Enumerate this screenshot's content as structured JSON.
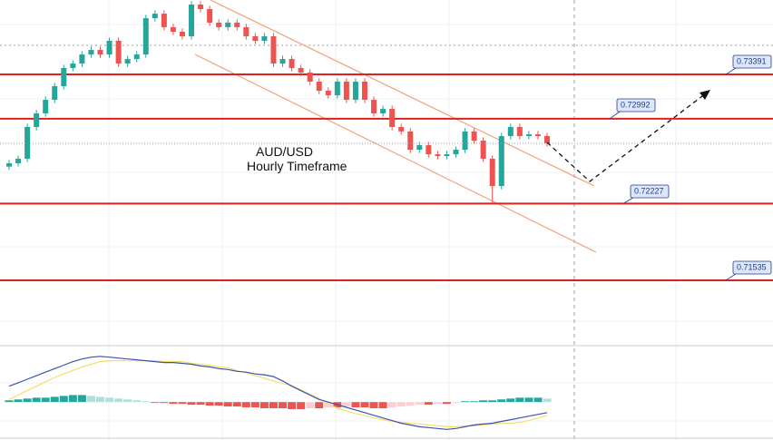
{
  "chart_data": {
    "type": "candlestick",
    "title": "AUD/USD",
    "subtitle": "Hourly Timeframe",
    "ylim": [
      0.70954,
      0.74062
    ],
    "up_color": "#26a69a",
    "down_color": "#ef5350",
    "open": [
      0.7256,
      0.7259,
      0.72631,
      0.72917,
      0.7304,
      0.73162,
      0.73285,
      0.73449,
      0.73489,
      0.73571,
      0.73612,
      0.73571,
      0.73694,
      0.73489,
      0.7353,
      0.73571,
      0.73898,
      0.73939,
      0.73817,
      0.73776,
      0.73735,
      0.74021,
      0.7398,
      0.73858,
      0.73817,
      0.73858,
      0.73817,
      0.73735,
      0.73694,
      0.73735,
      0.73489,
      0.7353,
      0.73449,
      0.73408,
      0.73326,
      0.73244,
      0.73203,
      0.73326,
      0.73162,
      0.73326,
      0.73162,
      0.7304,
      0.7308,
      0.72917,
      0.72877,
      0.72712,
      0.72753,
      0.72671,
      0.72655,
      0.72671,
      0.72712,
      0.72877,
      0.72794,
      0.72631,
      0.72385,
      0.72835,
      0.72917,
      0.72835,
      0.72851,
      0.72835
    ],
    "high": [
      0.7262,
      0.72661,
      0.72947,
      0.7307,
      0.73192,
      0.73315,
      0.73479,
      0.73519,
      0.73601,
      0.73642,
      0.73642,
      0.73724,
      0.73724,
      0.7356,
      0.73601,
      0.73928,
      0.73969,
      0.73969,
      0.73847,
      0.73806,
      0.74051,
      0.74051,
      0.7401,
      0.73888,
      0.73888,
      0.73888,
      0.73847,
      0.73765,
      0.73765,
      0.73765,
      0.7356,
      0.7356,
      0.73479,
      0.73438,
      0.73356,
      0.73274,
      0.73356,
      0.73356,
      0.73356,
      0.73356,
      0.73192,
      0.7311,
      0.7311,
      0.72947,
      0.72907,
      0.72783,
      0.72783,
      0.72701,
      0.72701,
      0.72742,
      0.72907,
      0.72907,
      0.72824,
      0.72661,
      0.72865,
      0.72947,
      0.72947,
      0.72881,
      0.72881,
      0.72865
    ],
    "low": [
      0.7253,
      0.7256,
      0.72601,
      0.72887,
      0.7301,
      0.73132,
      0.73255,
      0.73419,
      0.73459,
      0.73541,
      0.73541,
      0.73541,
      0.73459,
      0.73459,
      0.735,
      0.73541,
      0.73868,
      0.73787,
      0.73746,
      0.73705,
      0.73705,
      0.7395,
      0.73828,
      0.73787,
      0.73787,
      0.73787,
      0.73705,
      0.73664,
      0.73664,
      0.73459,
      0.73459,
      0.73419,
      0.73378,
      0.73296,
      0.73214,
      0.73173,
      0.73173,
      0.73132,
      0.73132,
      0.73132,
      0.7301,
      0.7301,
      0.72887,
      0.72847,
      0.72682,
      0.72682,
      0.72641,
      0.72625,
      0.72625,
      0.72641,
      0.72682,
      0.72764,
      0.72601,
      0.72227,
      0.72355,
      0.72805,
      0.72805,
      0.72805,
      0.72805,
      0.7274
    ],
    "close": [
      0.7259,
      0.72631,
      0.72917,
      0.7304,
      0.73162,
      0.73285,
      0.73449,
      0.73489,
      0.73571,
      0.73612,
      0.73571,
      0.73694,
      0.73489,
      0.7353,
      0.73571,
      0.73898,
      0.73939,
      0.73817,
      0.73776,
      0.73735,
      0.74021,
      0.7398,
      0.73858,
      0.73817,
      0.73858,
      0.73817,
      0.73735,
      0.73694,
      0.73735,
      0.73489,
      0.7353,
      0.73449,
      0.73408,
      0.73326,
      0.73244,
      0.73203,
      0.73326,
      0.73162,
      0.73326,
      0.73162,
      0.7304,
      0.7308,
      0.72917,
      0.72877,
      0.72712,
      0.72753,
      0.72671,
      0.72655,
      0.72671,
      0.72712,
      0.72877,
      0.72794,
      0.72631,
      0.72385,
      0.72835,
      0.72917,
      0.72835,
      0.72851,
      0.72835,
      0.7277
    ],
    "levels": {
      "color": "#e0201b",
      "values": [
        0.73391,
        0.72992,
        0.72227,
        0.71535
      ]
    },
    "macd": {
      "ylim": [
        -40,
        60
      ],
      "hist_up": "#26a69a",
      "hist_up_fading": "#b2dfdb",
      "hist_down": "#ef5350",
      "hist_down_fading": "#ffcdd2",
      "macd_color": "#3f51b5",
      "signal_color": "#f5e06a",
      "histogram": [
        2,
        3,
        4,
        5,
        5,
        6,
        7,
        8,
        8,
        7,
        6,
        5,
        4,
        3,
        2,
        1,
        -1,
        -1,
        -2,
        -2,
        -3,
        -3,
        -4,
        -4,
        -5,
        -5,
        -6,
        -6,
        -7,
        -7,
        -7,
        -8,
        -8,
        -7,
        -7,
        -6,
        -6,
        -5,
        -6,
        -6,
        -7,
        -7,
        -6,
        -5,
        -4,
        -3,
        -3,
        -2,
        -2,
        -1,
        1,
        1,
        2,
        2,
        3,
        4,
        5,
        5,
        5,
        4
      ],
      "macd": [
        18,
        22,
        26,
        30,
        34,
        38,
        42,
        46,
        49,
        51,
        52,
        51,
        50,
        49,
        48,
        47,
        46,
        45,
        45,
        44,
        43,
        41,
        40,
        38,
        37,
        35,
        34,
        32,
        31,
        29,
        24,
        18,
        13,
        8,
        3,
        0,
        -3,
        -6,
        -9,
        -12,
        -15,
        -18,
        -21,
        -24,
        -26,
        -28,
        -29,
        -30,
        -31,
        -30,
        -28,
        -26,
        -25,
        -24,
        -22,
        -20,
        -18,
        -16,
        -14,
        -12
      ],
      "signal": [
        3,
        8,
        13,
        18,
        23,
        28,
        32,
        36,
        40,
        43,
        46,
        47,
        47,
        47,
        47,
        47,
        47,
        46,
        46,
        46,
        44,
        43,
        42,
        40,
        39,
        36,
        33,
        30,
        27,
        24,
        21,
        19,
        14,
        9,
        4,
        -2,
        -7,
        -10,
        -13,
        -15,
        -18,
        -20,
        -22,
        -23,
        -24,
        -25,
        -26,
        -27,
        -28,
        -28,
        -27,
        -27,
        -26,
        -25,
        -24,
        -24,
        -23,
        -21,
        -18,
        -15
      ]
    }
  }
}
